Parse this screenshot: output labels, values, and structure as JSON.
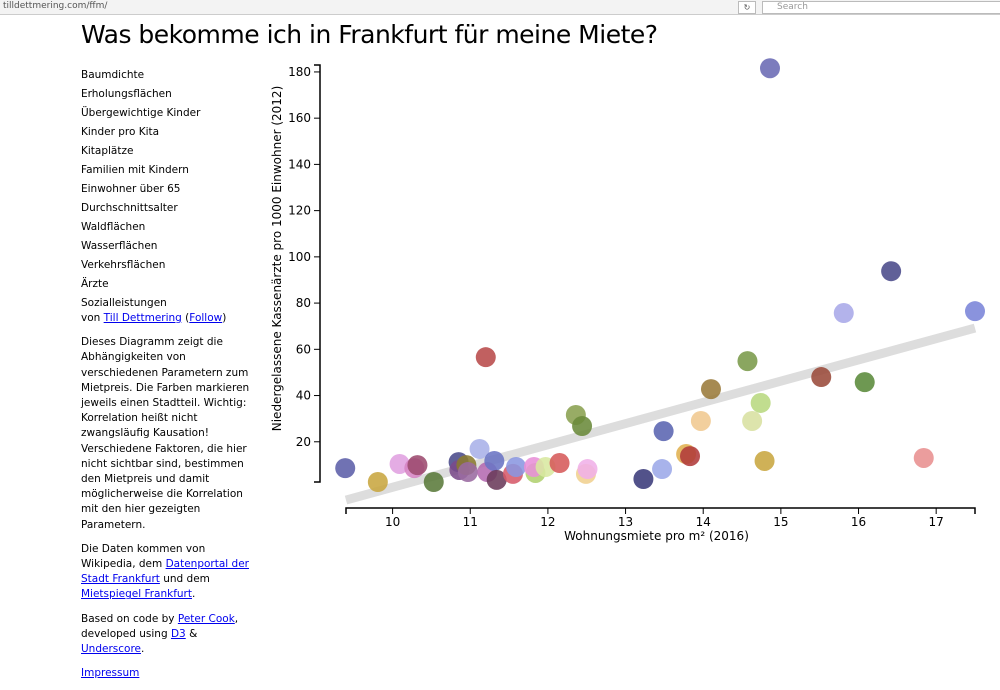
{
  "browser": {
    "url": "tilldettmering.com/ffm/",
    "search": "Search"
  },
  "header": {
    "title": "Was bekomme ich in Frankfurt für meine Miete?"
  },
  "menu": [
    "Baumdichte",
    "Erholungsflächen",
    "Übergewichtige Kinder",
    "Kinder pro Kita",
    "Kitaplätze",
    "Familien mit Kindern",
    "Einwohner über 65",
    "Durchschnittsalter",
    "Waldflächen",
    "Wasserflächen",
    "Verkehrsflächen",
    "Ärzte",
    "Sozialleistungen"
  ],
  "paragraphs": [
    [
      {
        "text": "von "
      },
      {
        "link": "Till Dettmering"
      },
      {
        "text": " ("
      },
      {
        "link": "Follow"
      },
      {
        "text": ")"
      }
    ],
    [
      {
        "text": "Dieses Diagramm zeigt die Abhängigkeiten von verschiedenen Parametern zum Mietpreis. Die Farben markieren jeweils einen Stadtteil. Wichtig: Korrelation heißt nicht zwangsläufig Kausation! Verschiedene Faktoren, die hier nicht sichtbar sind, bestimmen den Mietpreis und damit möglicherweise die Korrelation mit den hier gezeigten Parametern."
      }
    ],
    [
      {
        "text": "Die Daten kommen von Wikipedia, dem "
      },
      {
        "link": "Datenportal der Stadt Frankfurt"
      },
      {
        "text": " und dem "
      },
      {
        "link": "Mietspiegel Frankfurt"
      },
      {
        "text": "."
      }
    ],
    [
      {
        "text": "Based on code by "
      },
      {
        "link": "Peter Cook"
      },
      {
        "text": ", developed using "
      },
      {
        "link": "D3"
      },
      {
        "text": " & "
      },
      {
        "link": "Underscore"
      },
      {
        "text": "."
      }
    ],
    [
      {
        "link": "Impressum"
      }
    ]
  ],
  "chart_data": {
    "type": "scatter",
    "x_label": "Wohnungsmiete pro m² (2016)",
    "y_label": "Niedergelassene Kassenärzte pro 1000 Einwohner (2012)",
    "xlim": [
      9.4,
      17.5
    ],
    "ylim": [
      2.6,
      183
    ],
    "xticks": [
      10,
      11,
      12,
      13,
      14,
      15,
      16,
      17
    ],
    "yticks": [
      20,
      40,
      60,
      80,
      100,
      120,
      140,
      160,
      180
    ],
    "x": [
      9.39,
      9.81,
      10.09,
      10.28,
      10.32,
      10.53,
      10.85,
      10.86,
      10.95,
      10.97,
      11.12,
      11.2,
      11.22,
      11.31,
      11.34,
      11.55,
      11.59,
      11.84,
      11.82,
      11.97,
      12.15,
      12.36,
      12.44,
      12.49,
      12.51,
      13.23,
      13.47,
      13.49,
      13.78,
      13.83,
      13.97,
      14.1,
      14.57,
      14.63,
      14.74,
      14.79,
      14.86,
      15.52,
      15.81,
      16.08,
      16.42,
      16.84,
      17.5
    ],
    "values": [
      8.6,
      2.6,
      10.4,
      8.6,
      9.9,
      2.6,
      11.2,
      7.8,
      9.9,
      6.9,
      16.9,
      56.6,
      6.9,
      11.7,
      3.5,
      6.1,
      9.1,
      6.5,
      9.1,
      9.1,
      10.8,
      31.6,
      26.8,
      6.1,
      8.2,
      3.9,
      8.2,
      24.6,
      14.7,
      13.8,
      29,
      42.8,
      54.9,
      29,
      36.8,
      11.7,
      181.6,
      48,
      75.7,
      45.8,
      93.8,
      13,
      76.5
    ],
    "colors": [
      "#5c5fa8",
      "#c8a640",
      "#e0a0e0",
      "#d684c4",
      "#9c4a6e",
      "#5a7a3a",
      "#4a4a8a",
      "#7a4a8a",
      "#8a7a30",
      "#9a6aa0",
      "#a8b0e8",
      "#b84a4a",
      "#b46ab0",
      "#6a74c4",
      "#6a3a5a",
      "#d65a6a",
      "#8a96e0",
      "#b0d070",
      "#e890d8",
      "#d8e8a0",
      "#d65a5a",
      "#8aa050",
      "#6a8a3a",
      "#f0d090",
      "#f0b0e8",
      "#3a3a7a",
      "#9ca8e8",
      "#5a64b0",
      "#e0b050",
      "#b03a3a",
      "#f0c890",
      "#9a7a3a",
      "#7a9a4a",
      "#d8e0a0",
      "#b8d880",
      "#c8a640",
      "#6a6ab4",
      "#9a4a3a",
      "#a8a8e8",
      "#5a8a3a",
      "#4a4a8a",
      "#e89090",
      "#7a84d8"
    ],
    "trendline": {
      "x": [
        9.4,
        17.5
      ],
      "y": [
        -5.2,
        69.2
      ],
      "color": "#dddddd"
    }
  }
}
